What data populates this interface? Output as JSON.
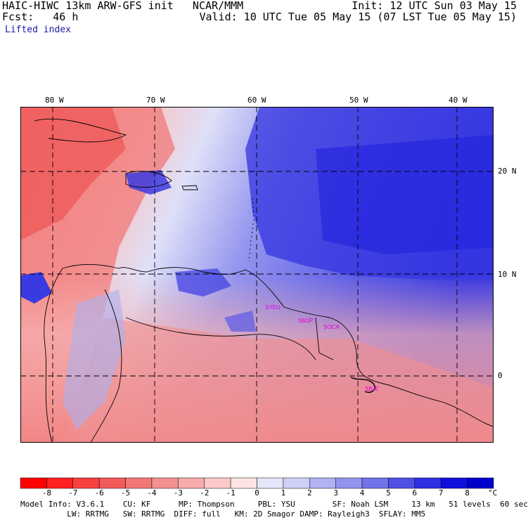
{
  "header": {
    "line1_left": "HAIC-HIWC 13km ARW-GFS init   NCAR/MMM",
    "line1_right": "Init: 12 UTC Sun 03 May 15",
    "line2_left": "Fcst:   46 h",
    "line2_right": "Valid: 10 UTC Tue 05 May 15 (07 LST Tue 05 May 15)",
    "field": "Lifted index"
  },
  "axes": {
    "lon_labels": [
      "80 W",
      "70 W",
      "60 W",
      "50 W",
      "40 W"
    ],
    "lat_labels": [
      "20 N",
      "10 N",
      "0"
    ]
  },
  "stations": [
    "SYEU",
    "SMJP",
    "SOCA",
    "SBJE"
  ],
  "colorbar": {
    "labels": [
      "-8",
      "-7",
      "-6",
      "-5",
      "-4",
      "-3",
      "-2",
      "-1",
      "0",
      "1",
      "2",
      "3",
      "4",
      "5",
      "6",
      "7",
      "8"
    ],
    "unit": "°C",
    "colors": [
      "#ff0000",
      "#ff2020",
      "#f94040",
      "#f45a5a",
      "#f27676",
      "#f49090",
      "#f7abab",
      "#fbc8c8",
      "#fde3e3",
      "#e6e6fb",
      "#cfd0f7",
      "#b0b2f2",
      "#9294ee",
      "#7173ea",
      "#5050e6",
      "#2f30e2",
      "#1010de",
      "#0000cc"
    ]
  },
  "footer": {
    "line1": "Model Info: V3.6.1    CU: KF      MP: Thompson     PBL: YSU        SF: Noah LSM     13 km   51 levels  60 sec",
    "line2": "          LW: RRTMG   SW: RRTMG  DIFF: full   KM: 2D Smagor DAMP: Rayleigh3  SFLAY: MM5"
  }
}
